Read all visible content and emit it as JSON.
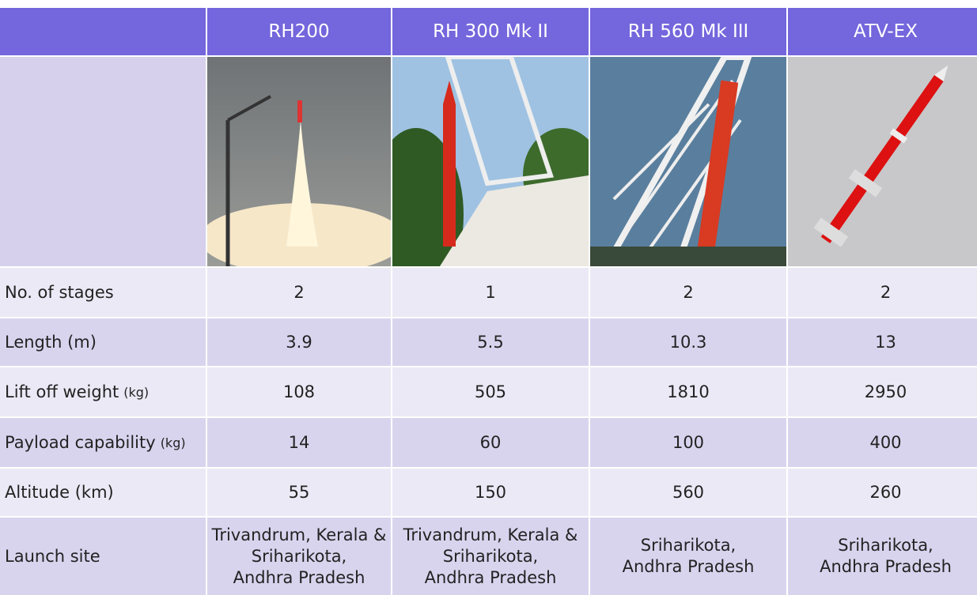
{
  "header": {
    "columns": [
      "RH200",
      "RH 300 Mk II",
      "RH 560 Mk III",
      "ATV-EX"
    ]
  },
  "table": {
    "rows": [
      {
        "label": "No. of stages",
        "values": [
          "2",
          "1",
          "2",
          "2"
        ]
      },
      {
        "label": "Length (m)",
        "values": [
          "3.9",
          "5.5",
          "10.3",
          "13"
        ]
      },
      {
        "label": "Lift off weight",
        "unit": "(kg)",
        "values": [
          "108",
          "505",
          "1810",
          "2950"
        ]
      },
      {
        "label": "Payload capability",
        "unit": "(kg)",
        "values": [
          "14",
          "60",
          "100",
          "400"
        ]
      },
      {
        "label": "Altitude (km)",
        "values": [
          "55",
          "150",
          "560",
          "260"
        ]
      },
      {
        "label": "Launch site",
        "values": [
          [
            "Trivandrum, Kerala &",
            "Sriharikota,",
            "Andhra Pradesh"
          ],
          [
            "Trivandrum, Kerala &",
            "Sriharikota,",
            "Andhra Pradesh"
          ],
          [
            "Sriharikota,",
            "Andhra Pradesh"
          ],
          [
            "Sriharikota,",
            "Andhra Pradesh"
          ]
        ]
      }
    ]
  }
}
